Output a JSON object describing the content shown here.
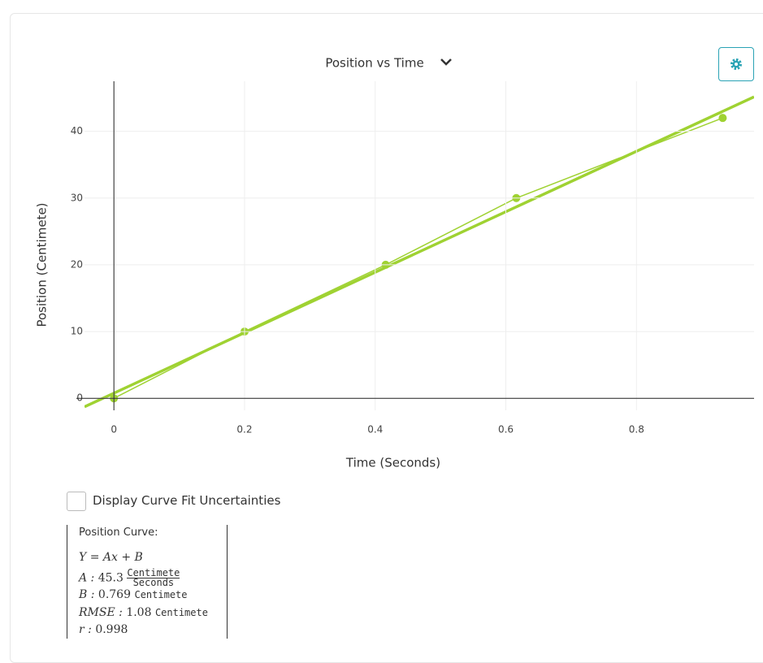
{
  "chart_data": {
    "type": "line",
    "title": "Position vs Time",
    "x_label": "Time (Seconds)",
    "y_label": "Position (Centimete)",
    "x": [
      0,
      0.2,
      0.416,
      0.616,
      0.932
    ],
    "values": [
      0,
      10,
      20,
      30,
      42
    ],
    "color": "#9fd232",
    "xlim": [
      -0.045,
      0.98
    ],
    "ylim": [
      -1.8,
      47.5
    ],
    "xticks": [
      0,
      0.2,
      0.4,
      0.6,
      0.8
    ],
    "yticks": [
      0,
      10,
      20,
      30,
      40
    ],
    "grid": true,
    "fit": {
      "title": "Position Curve:",
      "equation": "Y = Ax + B",
      "A": {
        "label": "A :",
        "value": 45.3,
        "unit": "Centimete",
        "per": "Seconds"
      },
      "B": {
        "label": "B :",
        "value": 0.769,
        "unit": "Centimete"
      },
      "RMSE": {
        "label": "RMSE :",
        "value": 1.08,
        "unit": "Centimete"
      },
      "r": {
        "label": "r :",
        "value": 0.998
      }
    }
  },
  "checkbox_label": "Display Curve Fit Uncertainties"
}
